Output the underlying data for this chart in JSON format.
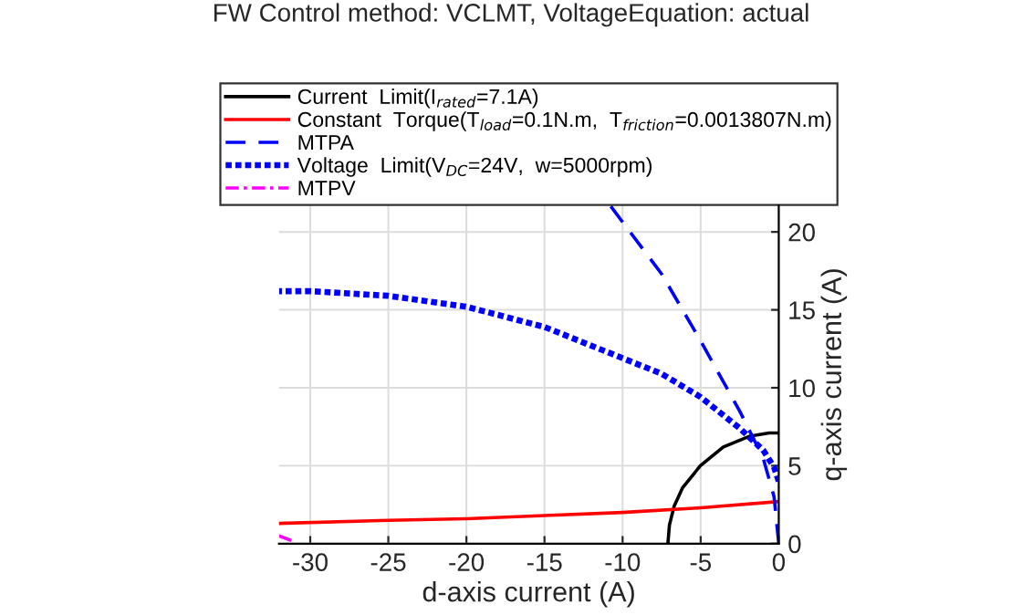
{
  "chart_data": {
    "type": "line",
    "title": "FW Control method: VCLMT, VoltageEquation: actual",
    "xlabel": "d-axis current (A)",
    "ylabel": "q-axis current (A)",
    "xlim": [
      -32,
      0
    ],
    "ylim": [
      0,
      21.7
    ],
    "xticks": [
      -30,
      -25,
      -20,
      -15,
      -10,
      -5,
      0
    ],
    "yticks": [
      0,
      5,
      10,
      15,
      20
    ],
    "grid": true,
    "legend": "top",
    "series": [
      {
        "name": "Current  Limit(I$_{rated}$=7.1A)",
        "color": "#000000",
        "line_style": "solid",
        "x": [
          -7.1,
          -7.0,
          -6.7,
          -6.15,
          -5.02,
          -3.55,
          -1.84,
          -0.62,
          0
        ],
        "values": [
          0,
          1.2,
          2.4,
          3.6,
          5.0,
          6.2,
          6.9,
          7.1,
          7.1
        ]
      },
      {
        "name": "Constant  Torque(T$_{load}$=0.1N.m,  T$_{friction}$=0.0013807N.m)",
        "color": "#ff0000",
        "line_style": "solid",
        "x": [
          -32,
          -25,
          -20,
          -15,
          -10,
          -5,
          0
        ],
        "values": [
          1.3,
          1.5,
          1.6,
          1.8,
          2.0,
          2.3,
          2.7
        ]
      },
      {
        "name": "MTPA",
        "color": "#0000ff",
        "line_style": "dashed",
        "x": [
          0,
          -0.3,
          -1,
          -2.5,
          -5,
          -7.5,
          -10.8
        ],
        "values": [
          0,
          3,
          5.5,
          8.5,
          13,
          17.3,
          21.7
        ]
      },
      {
        "name": "Voltage  Limit(V$_{DC}$=24V,  w=5000rpm)",
        "color": "#0000ff",
        "line_style": "dotted",
        "x": [
          0,
          -0.3,
          -1,
          -2.5,
          -5,
          -7.5,
          -10,
          -15,
          -20,
          -25,
          -30,
          -32
        ],
        "values": [
          4,
          4.9,
          6.0,
          7.4,
          9.4,
          10.9,
          11.9,
          13.9,
          15.2,
          15.9,
          16.2,
          16.2
        ]
      },
      {
        "name": "MTPV",
        "color": "#ff00ff",
        "line_style": "dashdot",
        "x": [
          -32,
          -31.2
        ],
        "values": [
          0.5,
          0.2
        ]
      }
    ]
  }
}
